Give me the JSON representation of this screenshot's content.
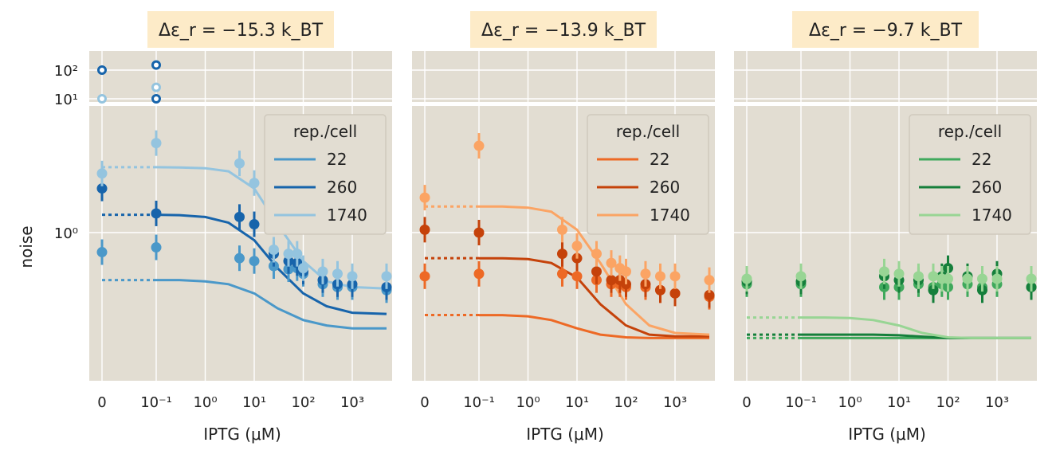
{
  "chart_data": {
    "type": "scatter",
    "ylabel": "noise",
    "xlabel": "IPTG (μM)",
    "x_tick_labels": [
      "0",
      "10⁻¹",
      "10⁰",
      "10¹",
      "10²",
      "10³"
    ],
    "y_tick_labels_main": [
      "10⁰"
    ],
    "y_tick_labels_top": [
      "10²",
      "10¹"
    ],
    "legend_title": "rep./cell",
    "legend_labels": [
      "22",
      "260",
      "1740"
    ],
    "panels": [
      {
        "title": "Δε_r = −15.3 k_BT",
        "colors": [
          "#4a98c9",
          "#1764ab",
          "#94c4df"
        ],
        "theory_x": [
          0.1,
          0.3,
          1,
          3,
          10,
          30,
          100,
          300,
          1000,
          5000
        ],
        "theory": [
          {
            "rep": "22",
            "zero": 0.45,
            "y": [
              0.45,
              0.45,
              0.44,
              0.42,
              0.36,
              0.28,
              0.23,
              0.21,
              0.2,
              0.2
            ]
          },
          {
            "rep": "260",
            "zero": 1.35,
            "y": [
              1.35,
              1.34,
              1.3,
              1.18,
              0.88,
              0.55,
              0.36,
              0.29,
              0.26,
              0.255
            ]
          },
          {
            "rep": "1740",
            "zero": 3.0,
            "y": [
              3.0,
              2.99,
              2.95,
              2.8,
              2.1,
              1.15,
              0.62,
              0.44,
              0.4,
              0.39
            ]
          }
        ],
        "points": [
          {
            "rep": "22",
            "x": [
              0,
              0.1,
              5,
              10,
              25,
              50,
              75,
              100,
              250,
              500,
              1000,
              5000
            ],
            "y": [
              0.72,
              0.78,
              0.65,
              0.62,
              0.57,
              0.54,
              0.55,
              0.5,
              0.42,
              0.4,
              0.4,
              0.38
            ]
          },
          {
            "rep": "260",
            "x": [
              0,
              0.1,
              5,
              10,
              25,
              50,
              75,
              100,
              250,
              500,
              1000,
              5000
            ],
            "y": [
              2.1,
              1.38,
              1.3,
              1.15,
              0.7,
              0.62,
              0.6,
              0.52,
              0.45,
              0.42,
              0.42,
              0.4
            ]
          },
          {
            "rep": "1740",
            "x": [
              0,
              0.1,
              5,
              10,
              25,
              50,
              75,
              100,
              250,
              500,
              1000,
              5000
            ],
            "y": [
              2.7,
              4.5,
              3.2,
              2.3,
              0.75,
              0.7,
              0.7,
              0.55,
              0.52,
              0.5,
              0.48,
              0.48
            ]
          }
        ],
        "outliers": [
          {
            "rep": "260",
            "x": [
              0,
              0.1,
              0.1
            ],
            "y": [
              100,
              150,
              10
            ]
          },
          {
            "rep": "1740",
            "x": [
              0,
              0.1
            ],
            "y": [
              10,
              25
            ]
          }
        ]
      },
      {
        "title": "Δε_r = −13.9 k_BT",
        "colors": [
          "#ed6925",
          "#c5420a",
          "#fba464"
        ],
        "theory_x": [
          0.1,
          0.3,
          1,
          3,
          10,
          30,
          100,
          300,
          1000,
          5000
        ],
        "theory": [
          {
            "rep": "22",
            "zero": 0.25,
            "y": [
              0.25,
              0.25,
              0.245,
              0.23,
              0.2,
              0.18,
              0.172,
              0.17,
              0.17,
              0.17
            ]
          },
          {
            "rep": "260",
            "zero": 0.65,
            "y": [
              0.65,
              0.65,
              0.64,
              0.6,
              0.47,
              0.3,
              0.21,
              0.18,
              0.175,
              0.175
            ]
          },
          {
            "rep": "1740",
            "zero": 1.55,
            "y": [
              1.55,
              1.55,
              1.52,
              1.42,
              1.05,
              0.6,
              0.3,
              0.21,
              0.185,
              0.18
            ]
          }
        ],
        "points": [
          {
            "rep": "22",
            "x": [
              0,
              0.1,
              5,
              10,
              25,
              50,
              75,
              100,
              250,
              500,
              1000,
              5000
            ],
            "y": [
              0.48,
              0.5,
              0.5,
              0.48,
              0.45,
              0.42,
              0.42,
              0.4,
              0.4,
              0.38,
              0.36,
              0.34
            ]
          },
          {
            "rep": "260",
            "x": [
              0,
              0.1,
              5,
              10,
              25,
              50,
              75,
              100,
              250,
              500,
              1000,
              5000
            ],
            "y": [
              1.05,
              1.0,
              0.7,
              0.65,
              0.52,
              0.45,
              0.45,
              0.42,
              0.42,
              0.38,
              0.36,
              0.35
            ]
          },
          {
            "rep": "1740",
            "x": [
              0,
              0.1,
              5,
              10,
              25,
              50,
              75,
              100,
              250,
              500,
              1000,
              5000
            ],
            "y": [
              1.8,
              4.3,
              1.05,
              0.8,
              0.7,
              0.6,
              0.55,
              0.52,
              0.5,
              0.48,
              0.48,
              0.45
            ]
          }
        ],
        "outliers": []
      },
      {
        "title": "Δε_r = −9.7 k_BT",
        "colors": [
          "#3fa95c",
          "#157f3b",
          "#98d594"
        ],
        "theory_x": [
          0.1,
          0.3,
          1,
          3,
          10,
          30,
          100,
          300,
          1000,
          5000
        ],
        "theory": [
          {
            "rep": "22",
            "zero": 0.17,
            "y": [
              0.17,
              0.17,
              0.17,
              0.17,
              0.17,
              0.17,
              0.17,
              0.17,
              0.17,
              0.17
            ]
          },
          {
            "rep": "260",
            "zero": 0.18,
            "y": [
              0.18,
              0.18,
              0.18,
              0.18,
              0.178,
              0.174,
              0.17,
              0.17,
              0.17,
              0.17
            ]
          },
          {
            "rep": "1740",
            "zero": 0.24,
            "y": [
              0.24,
              0.24,
              0.238,
              0.23,
              0.21,
              0.185,
              0.172,
              0.17,
              0.17,
              0.17
            ]
          }
        ],
        "points": [
          {
            "rep": "22",
            "x": [
              0,
              0.1,
              5,
              10,
              25,
              50,
              75,
              100,
              250,
              500,
              1000,
              5000
            ],
            "y": [
              0.42,
              0.42,
              0.4,
              0.4,
              0.42,
              0.4,
              0.42,
              0.4,
              0.42,
              0.4,
              0.42,
              0.4
            ]
          },
          {
            "rep": "260",
            "x": [
              0,
              0.1,
              5,
              10,
              25,
              50,
              75,
              100,
              250,
              500,
              1000,
              5000
            ],
            "y": [
              0.44,
              0.44,
              0.48,
              0.45,
              0.45,
              0.38,
              0.48,
              0.55,
              0.48,
              0.38,
              0.5,
              0.4
            ]
          },
          {
            "rep": "1740",
            "x": [
              0,
              0.1,
              5,
              10,
              25,
              50,
              75,
              100,
              250,
              500,
              1000,
              5000
            ],
            "y": [
              0.46,
              0.48,
              0.52,
              0.5,
              0.48,
              0.48,
              0.46,
              0.46,
              0.46,
              0.46,
              0.46,
              0.46
            ]
          }
        ],
        "outliers": []
      }
    ]
  }
}
